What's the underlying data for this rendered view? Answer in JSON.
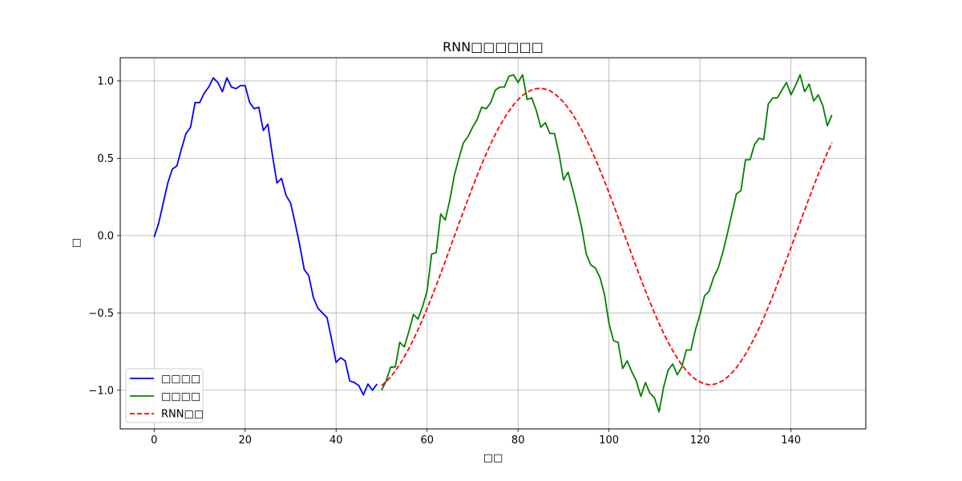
{
  "chart_data": {
    "type": "line",
    "title": "RNN□□□□□□",
    "xlabel": "□□",
    "ylabel": "□",
    "xlim": [
      -7.45,
      156.45
    ],
    "ylim": [
      -1.25,
      1.15
    ],
    "xticks": [
      0,
      20,
      40,
      60,
      80,
      100,
      120,
      140
    ],
    "yticks": [
      -1.0,
      -0.5,
      0.0,
      0.5,
      1.0
    ],
    "xtick_labels": [
      "0",
      "20",
      "40",
      "60",
      "80",
      "100",
      "120",
      "140"
    ],
    "ytick_labels": [
      "−1.0",
      "−0.5",
      "0.0",
      "0.5",
      "1.0"
    ],
    "grid": true,
    "legend_position": "lower-left",
    "series": [
      {
        "name": "□□□□",
        "color": "#0000ff",
        "style": "solid",
        "x": [
          0,
          1,
          2,
          3,
          4,
          5,
          6,
          7,
          8,
          9,
          10,
          11,
          12,
          13,
          14,
          15,
          16,
          17,
          18,
          19,
          20,
          21,
          22,
          23,
          24,
          25,
          26,
          27,
          28,
          29,
          30,
          31,
          32,
          33,
          34,
          35,
          36,
          37,
          38,
          39,
          40,
          41,
          42,
          43,
          44,
          45,
          46,
          47,
          48,
          49
        ],
        "y": [
          -0.01,
          0.08,
          0.21,
          0.34,
          0.43,
          0.45,
          0.56,
          0.66,
          0.7,
          0.86,
          0.86,
          0.92,
          0.96,
          1.02,
          0.99,
          0.93,
          1.02,
          0.96,
          0.95,
          0.97,
          0.97,
          0.86,
          0.82,
          0.83,
          0.68,
          0.72,
          0.52,
          0.34,
          0.37,
          0.26,
          0.21,
          0.08,
          -0.06,
          -0.22,
          -0.26,
          -0.4,
          -0.47,
          -0.5,
          -0.53,
          -0.67,
          -0.82,
          -0.79,
          -0.81,
          -0.94,
          -0.95,
          -0.97,
          -1.03,
          -0.96,
          -1.0,
          -0.96
        ]
      },
      {
        "name": "□□□□",
        "color": "#008000",
        "style": "solid",
        "x": [
          50,
          51,
          52,
          53,
          54,
          55,
          56,
          57,
          58,
          59,
          60,
          61,
          62,
          63,
          64,
          65,
          66,
          67,
          68,
          69,
          70,
          71,
          72,
          73,
          74,
          75,
          76,
          77,
          78,
          79,
          80,
          81,
          82,
          83,
          84,
          85,
          86,
          87,
          88,
          89,
          90,
          91,
          92,
          93,
          94,
          95,
          96,
          97,
          98,
          99,
          100,
          101,
          102,
          103,
          104,
          105,
          106,
          107,
          108,
          109,
          110,
          111,
          112,
          113,
          114,
          115,
          116,
          117,
          118,
          119,
          120,
          121,
          122,
          123,
          124,
          125,
          126,
          127,
          128,
          129,
          130,
          131,
          132,
          133,
          134,
          135,
          136,
          137,
          138,
          139,
          140,
          141,
          142,
          143,
          144,
          145,
          146,
          147,
          148,
          149
        ],
        "y": [
          -1.0,
          -0.94,
          -0.85,
          -0.85,
          -0.69,
          -0.72,
          -0.62,
          -0.51,
          -0.54,
          -0.46,
          -0.36,
          -0.12,
          -0.11,
          0.14,
          0.1,
          0.23,
          0.39,
          0.5,
          0.6,
          0.64,
          0.7,
          0.75,
          0.83,
          0.82,
          0.86,
          0.94,
          0.96,
          0.96,
          1.03,
          1.04,
          0.99,
          1.04,
          0.88,
          0.89,
          0.81,
          0.7,
          0.73,
          0.66,
          0.66,
          0.53,
          0.36,
          0.41,
          0.3,
          0.18,
          0.05,
          -0.12,
          -0.19,
          -0.21,
          -0.27,
          -0.38,
          -0.57,
          -0.68,
          -0.69,
          -0.86,
          -0.81,
          -0.88,
          -0.94,
          -1.04,
          -0.95,
          -1.02,
          -1.05,
          -1.14,
          -0.98,
          -0.87,
          -0.83,
          -0.9,
          -0.85,
          -0.74,
          -0.74,
          -0.61,
          -0.51,
          -0.39,
          -0.36,
          -0.27,
          -0.21,
          -0.11,
          0.01,
          0.14,
          0.27,
          0.29,
          0.49,
          0.49,
          0.59,
          0.63,
          0.62,
          0.85,
          0.89,
          0.89,
          0.94,
          0.99,
          0.91,
          0.97,
          1.04,
          0.93,
          0.98,
          0.87,
          0.91,
          0.84,
          0.71,
          0.78
        ]
      },
      {
        "name": "RNN□□",
        "color": "#ff0000",
        "style": "dashed",
        "x": [
          50,
          51,
          52,
          53,
          54,
          55,
          56,
          57,
          58,
          59,
          60,
          61,
          62,
          63,
          64,
          65,
          66,
          67,
          68,
          69,
          70,
          71,
          72,
          73,
          74,
          75,
          76,
          77,
          78,
          79,
          80,
          81,
          82,
          83,
          84,
          85,
          86,
          87,
          88,
          89,
          90,
          91,
          92,
          93,
          94,
          95,
          96,
          97,
          98,
          99,
          100,
          101,
          102,
          103,
          104,
          105,
          106,
          107,
          108,
          109,
          110,
          111,
          112,
          113,
          114,
          115,
          116,
          117,
          118,
          119,
          120,
          121,
          122,
          123,
          124,
          125,
          126,
          127,
          128,
          129,
          130,
          131,
          132,
          133,
          134,
          135,
          136,
          137,
          138,
          139,
          140,
          141,
          142,
          143,
          144,
          145,
          146,
          147,
          148,
          149
        ],
        "y": [
          -0.97,
          -0.945,
          -0.914,
          -0.876,
          -0.833,
          -0.784,
          -0.73,
          -0.672,
          -0.609,
          -0.542,
          -0.472,
          -0.399,
          -0.323,
          -0.245,
          -0.166,
          -0.085,
          -0.004,
          0.077,
          0.157,
          0.236,
          0.313,
          0.388,
          0.46,
          0.529,
          0.593,
          0.654,
          0.71,
          0.76,
          0.805,
          0.845,
          0.879,
          0.906,
          0.927,
          0.942,
          0.95,
          0.952,
          0.947,
          0.936,
          0.918,
          0.893,
          0.863,
          0.826,
          0.784,
          0.736,
          0.683,
          0.624,
          0.562,
          0.495,
          0.425,
          0.352,
          0.276,
          0.198,
          0.118,
          0.038,
          -0.043,
          -0.123,
          -0.203,
          -0.281,
          -0.357,
          -0.431,
          -0.501,
          -0.568,
          -0.631,
          -0.69,
          -0.744,
          -0.793,
          -0.836,
          -0.873,
          -0.904,
          -0.929,
          -0.947,
          -0.959,
          -0.964,
          -0.962,
          -0.953,
          -0.938,
          -0.916,
          -0.888,
          -0.854,
          -0.813,
          -0.767,
          -0.716,
          -0.659,
          -0.598,
          -0.532,
          -0.463,
          -0.39,
          -0.314,
          -0.236,
          -0.157,
          -0.077,
          0.004,
          0.085,
          0.165,
          0.244,
          0.321,
          0.396,
          0.468,
          0.536,
          0.601
        ]
      }
    ]
  }
}
